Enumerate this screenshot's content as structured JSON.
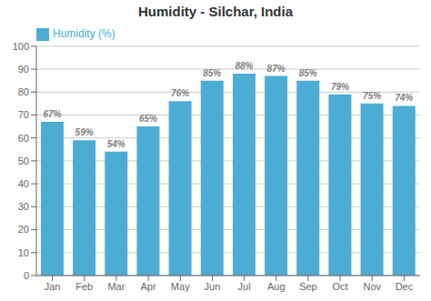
{
  "chart_data": {
    "type": "bar",
    "title": "Humidity - Silchar, India",
    "categories": [
      "Jan",
      "Feb",
      "Mar",
      "Apr",
      "May",
      "Jun",
      "Jul",
      "Aug",
      "Sep",
      "Oct",
      "Nov",
      "Dec"
    ],
    "series": [
      {
        "name": "Humidity (%)",
        "color": "#4BADD4",
        "values": [
          67,
          59,
          54,
          65,
          76,
          85,
          88,
          87,
          85,
          79,
          75,
          74
        ],
        "value_labels": [
          "67%",
          "59%",
          "54%",
          "65%",
          "76%",
          "85%",
          "88%",
          "87%",
          "85%",
          "79%",
          "75%",
          "74%"
        ]
      }
    ],
    "ylim": [
      0,
      100
    ],
    "yticks": [
      0,
      10,
      20,
      30,
      40,
      50,
      60,
      70,
      80,
      90,
      100
    ],
    "grid": true,
    "legend": "upper left",
    "data_labels": true
  }
}
